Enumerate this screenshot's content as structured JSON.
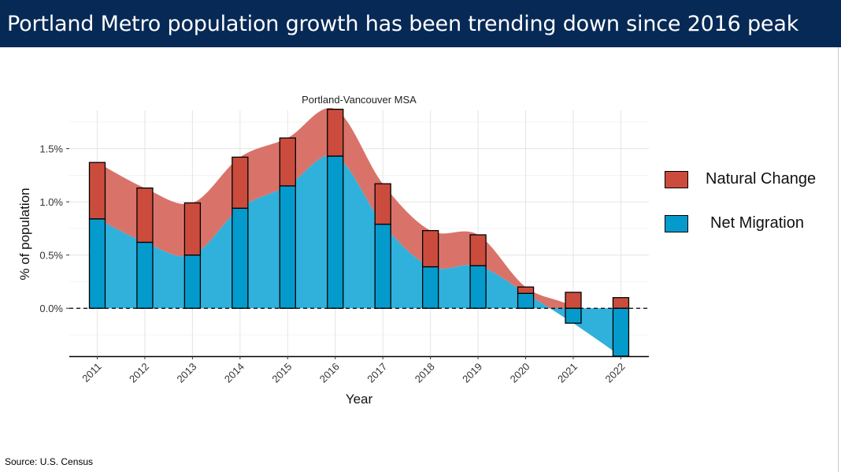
{
  "header": {
    "title": "Portland Metro population growth has been trending down since 2016 peak"
  },
  "source": "Source: U.S. Census",
  "colors": {
    "banner": "#072955",
    "natural_change_bar": "#CB4C3D",
    "natural_change_area": "#D9736A",
    "net_migration_bar": "#049BCC",
    "net_migration_area": "#2FB1DB"
  },
  "chart_data": {
    "type": "bar",
    "stacked": true,
    "title": "Portland-Vancouver MSA",
    "xlabel": "Year",
    "ylabel": "% of population",
    "categories": [
      "2011",
      "2012",
      "2013",
      "2014",
      "2015",
      "2016",
      "2017",
      "2018",
      "2019",
      "2020",
      "2021",
      "2022"
    ],
    "series": [
      {
        "name": "Net Migration",
        "values": [
          0.84,
          0.62,
          0.5,
          0.94,
          1.15,
          1.43,
          0.79,
          0.39,
          0.4,
          0.14,
          -0.14,
          -0.45
        ]
      },
      {
        "name": "Natural Change",
        "values": [
          0.53,
          0.51,
          0.49,
          0.48,
          0.45,
          0.44,
          0.38,
          0.34,
          0.29,
          0.06,
          0.15,
          0.1
        ]
      }
    ],
    "ylim": [
      -0.45,
      1.86
    ],
    "yticks": [
      0,
      0.5,
      1.0,
      1.5
    ],
    "ytick_labels": [
      "0.0%",
      "0.5%",
      "1.0%",
      "1.5%"
    ],
    "reference_line": {
      "y": 0,
      "style": "dashed"
    },
    "smoothed_area_overlay": true,
    "grid": true,
    "legend_position": "right"
  }
}
